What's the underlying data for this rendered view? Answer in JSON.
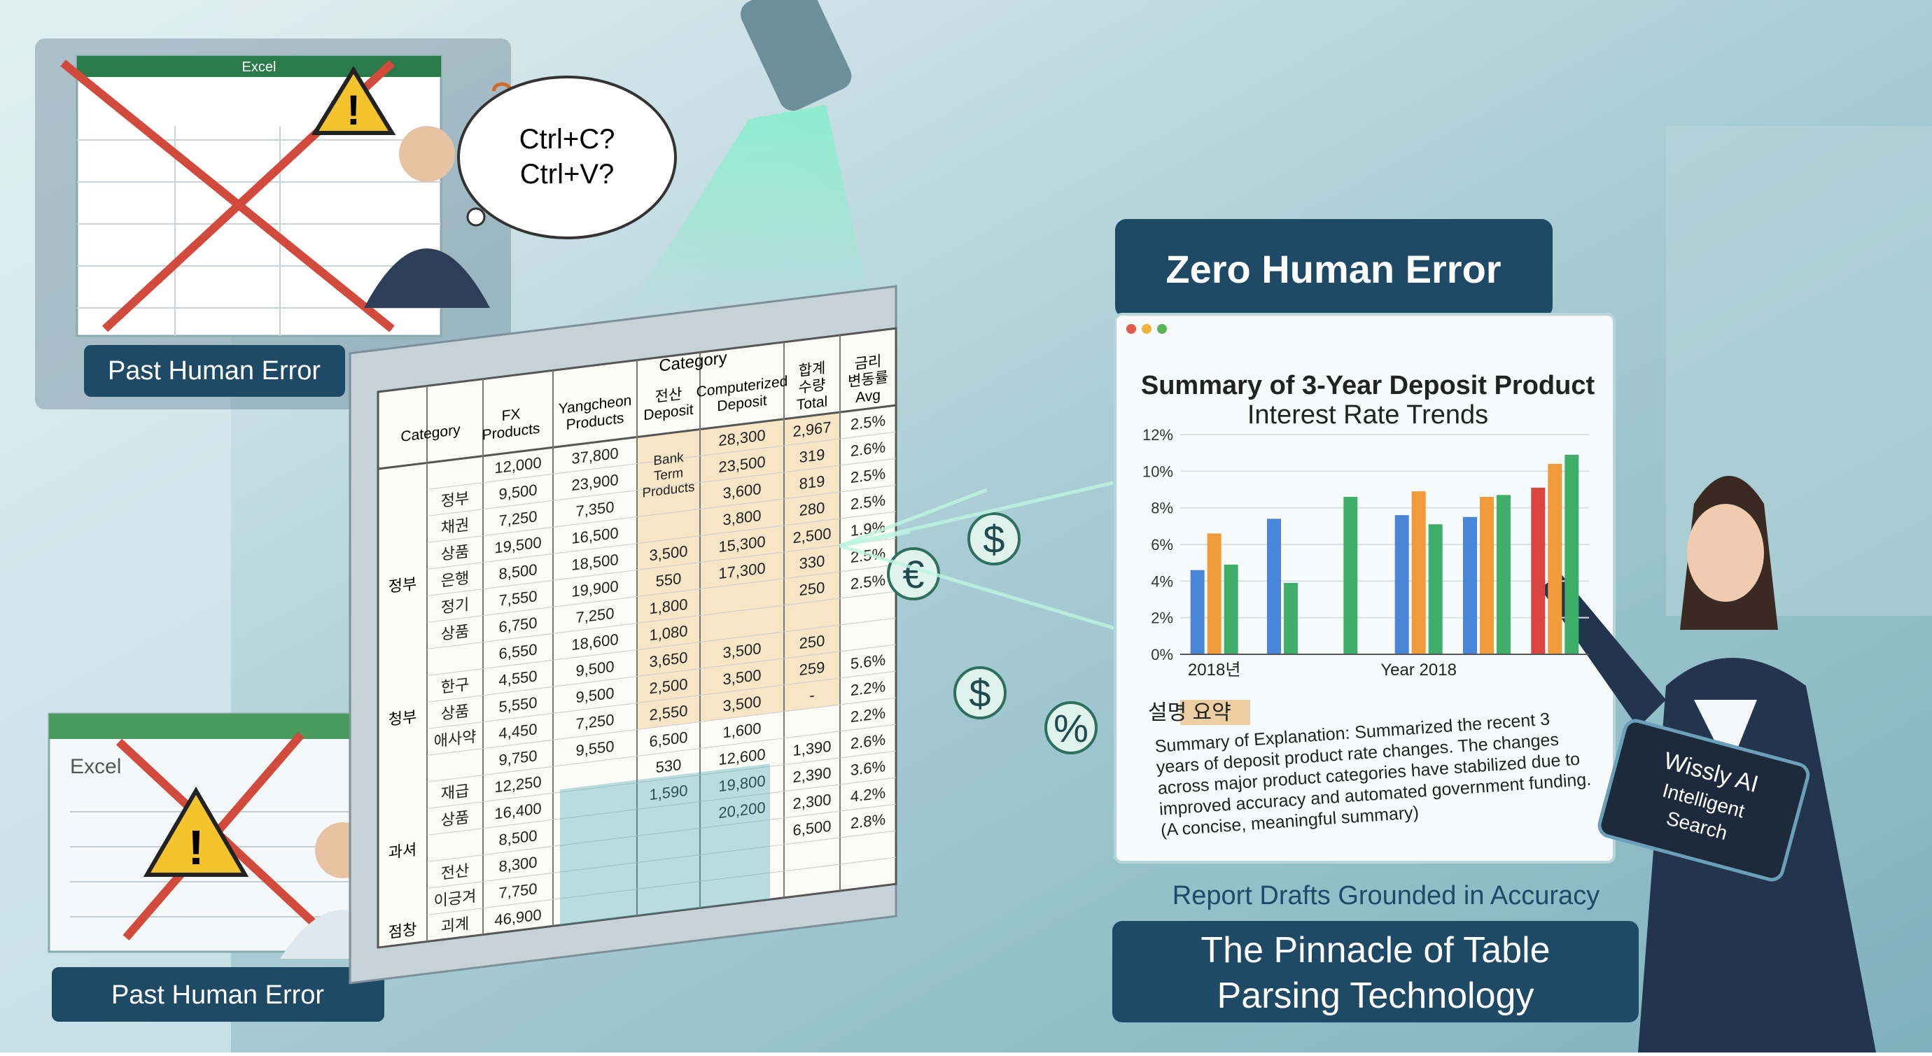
{
  "left_panels": [
    {
      "window_title": "Excel",
      "label": "Past Human Error"
    },
    {
      "window_title": "Excel",
      "label": "Past Human Error"
    }
  ],
  "speech_bubble": [
    "Ctrl+C?",
    "Ctrl+V?"
  ],
  "table": {
    "header_top": "Category",
    "header": [
      "Category",
      "FX Products",
      "Yangcheon Products",
      "전산 Deposit",
      "Computerized Deposit",
      "합계 수량 Total",
      "금리 변동률 Avg"
    ],
    "groups": [
      "정부",
      "청부",
      "과셔",
      "점창"
    ],
    "rows": [
      [
        null,
        "12,000",
        "37,800",
        null,
        "28,300",
        "2,967",
        "2.5%"
      ],
      [
        "정부",
        "9,500",
        "23,900",
        "Bank Term Products",
        "23,500",
        "319",
        "2.6%"
      ],
      [
        "채권",
        "7,250",
        "7,350",
        null,
        "3,600",
        "819",
        "2.5%"
      ],
      [
        "상품",
        "19,500",
        "16,500",
        null,
        "3,800",
        "280",
        "2.5%"
      ],
      [
        "은행",
        "8,500",
        "18,500",
        "3,500",
        "15,300",
        "2,500",
        "1.9%"
      ],
      [
        "정기",
        "7,550",
        "19,900",
        "550",
        "17,300",
        "330",
        "2.5%"
      ],
      [
        "상품",
        "6,750",
        "7,250",
        "1,800",
        null,
        "250",
        "2.5%"
      ],
      [
        null,
        "6,550",
        "18,600",
        "1,080",
        null,
        null,
        null
      ],
      [
        "한구",
        "4,550",
        "9,500",
        "3,650",
        "3,500",
        "250",
        null
      ],
      [
        "상품",
        "5,550",
        "9,500",
        "2,500",
        "3,500",
        "259",
        "5.6%"
      ],
      [
        "애사약",
        "4,450",
        "7,250",
        "2,550",
        "3,500",
        "-",
        "2.2%"
      ],
      [
        null,
        "9,750",
        "9,550",
        "6,500",
        "1,600",
        null,
        "2.2%"
      ],
      [
        "재급",
        "12,250",
        null,
        "530",
        "12,600",
        "1,390",
        "2.6%"
      ],
      [
        "상품",
        "16,400",
        null,
        "1,590",
        "19,800",
        "2,390",
        "3.6%"
      ],
      [
        null,
        "8,500",
        null,
        null,
        "20,200",
        "2,300",
        "4.2%"
      ],
      [
        "전산",
        "8,300",
        null,
        null,
        null,
        "6,500",
        "2.8%"
      ],
      [
        "이긍겨",
        "7,750",
        null,
        null,
        null,
        null,
        null
      ],
      [
        "괴계",
        "46,900",
        null,
        null,
        null,
        null,
        null
      ]
    ]
  },
  "icons": [
    "$",
    "€",
    "$",
    "%"
  ],
  "badge": "Zero Human Error",
  "report": {
    "title": [
      "Summary of 3-Year Deposit Product",
      "Interest Rate Trends"
    ],
    "chart": {
      "type": "bar",
      "ylim": [
        0,
        12
      ],
      "yticks": [
        {
          "value": 0,
          "label": "0%"
        },
        {
          "value": 2,
          "label": "2%"
        },
        {
          "value": 4,
          "label": "4%"
        },
        {
          "value": 6,
          "label": "6%"
        },
        {
          "value": 8,
          "label": "8%"
        },
        {
          "value": 10,
          "label": "10%"
        },
        {
          "value": 12,
          "label": "12%"
        }
      ],
      "categories": [
        "2018년",
        null,
        null,
        "Year 2018",
        null,
        null
      ],
      "groups": [
        {
          "bars": [
            {
              "color": "#4a86d8",
              "value": 4.6
            },
            {
              "color": "#f29b3a",
              "value": 6.6
            },
            {
              "color": "#3fae6a",
              "value": 4.9
            }
          ]
        },
        {
          "bars": [
            {
              "color": "#4a86d8",
              "value": 7.4
            },
            {
              "color": "#3fae6a",
              "value": 3.9
            }
          ]
        },
        {
          "bars": [
            {
              "color": "#3fae6a",
              "value": 8.6
            }
          ]
        },
        {
          "bars": [
            {
              "color": "#4a86d8",
              "value": 7.6
            },
            {
              "color": "#f29b3a",
              "value": 8.9
            },
            {
              "color": "#3fae6a",
              "value": 7.1
            }
          ]
        },
        {
          "bars": [
            {
              "color": "#4a86d8",
              "value": 7.5
            },
            {
              "color": "#f29b3a",
              "value": 8.6
            },
            {
              "color": "#3fae6a",
              "value": 8.7
            }
          ]
        },
        {
          "bars": [
            {
              "color": "#d9453f",
              "value": 9.1
            },
            {
              "color": "#f29b3a",
              "value": 10.4
            },
            {
              "color": "#3fae6a",
              "value": 10.9
            }
          ]
        }
      ]
    },
    "summary_heading": "설명 요약",
    "summary": [
      "Summary of Explanation: Summarized the recent 3",
      "years of deposit product rate changes. The changes",
      "across major product categories have stabilized due to",
      "improved accuracy and automated government funding.",
      "(A concise, meaningful summary)"
    ]
  },
  "tagline": "Report Drafts Grounded in Accuracy",
  "headline": [
    "The Pinnacle of Table",
    "Parsing Technology"
  ],
  "tablet": [
    "Wissly AI",
    "Intelligent",
    "Search"
  ]
}
